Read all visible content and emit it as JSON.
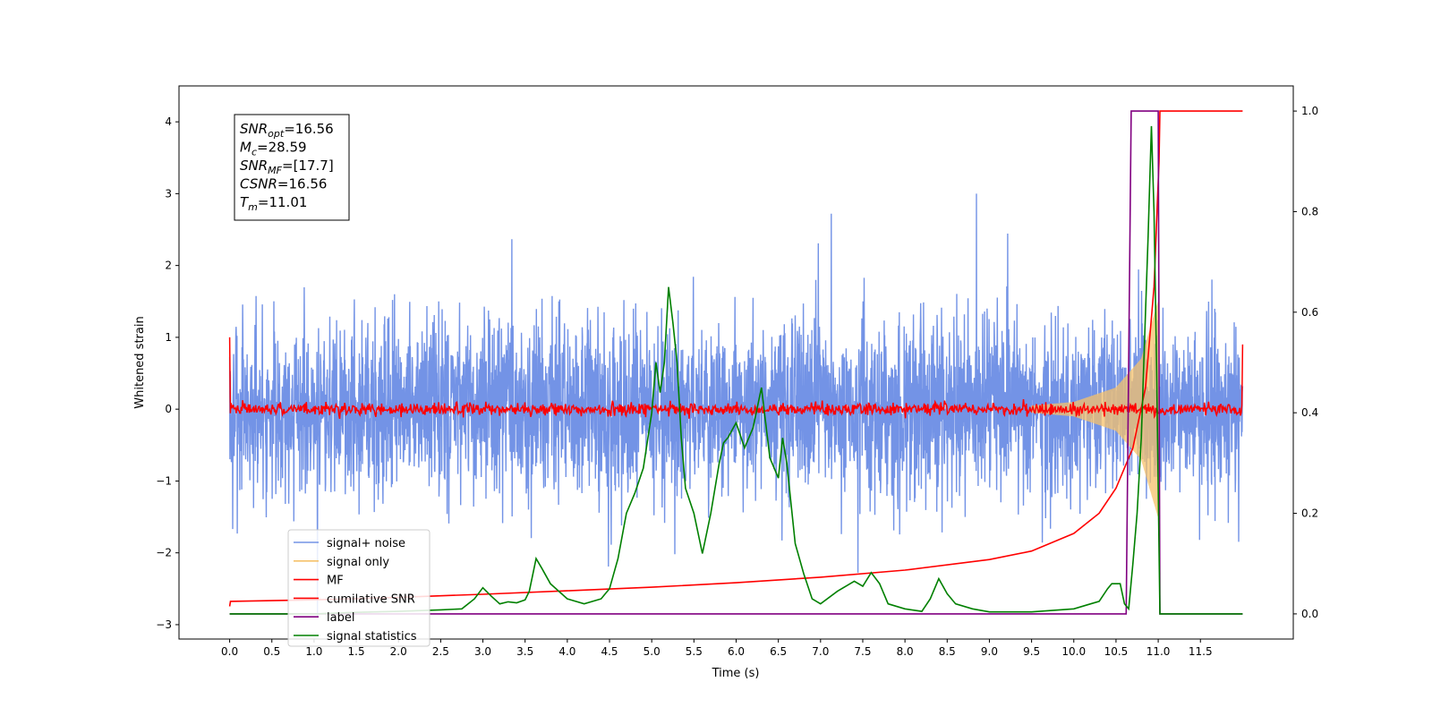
{
  "chart_data": {
    "type": "line",
    "xlabel": "Time (s)",
    "ylabel_left": "Whitened strain",
    "ylabel_right": "",
    "xlim": [
      -0.6,
      12.6
    ],
    "ylim_left": [
      -3.2,
      4.5
    ],
    "ylim_right": [
      -0.05,
      1.05
    ],
    "x_ticks": [
      "0.0",
      "0.5",
      "1.0",
      "1.5",
      "2.0",
      "2.5",
      "3.0",
      "3.5",
      "4.0",
      "4.5",
      "5.0",
      "5.5",
      "6.0",
      "6.5",
      "7.0",
      "7.5",
      "8.0",
      "8.5",
      "9.0",
      "9.5",
      "10.0",
      "10.5",
      "11.0",
      "11.5"
    ],
    "y_ticks_left": [
      "−3",
      "−2",
      "−1",
      "0",
      "1",
      "2",
      "3",
      "4"
    ],
    "y_ticks_right": [
      "0.0",
      "0.2",
      "0.4",
      "0.6",
      "0.8",
      "1.0"
    ],
    "grid": false,
    "legend_position": "lower-left",
    "info_box": {
      "lines": [
        {
          "sym": "SNR",
          "sub": "opt",
          "val": "=16.56"
        },
        {
          "sym": "M",
          "sub": "c",
          "val": "=28.59"
        },
        {
          "sym": "SNR",
          "sub": "MF",
          "val": "=[17.7]"
        },
        {
          "sym": "CSNR",
          "sub": "",
          "val": "=16.56"
        },
        {
          "sym": "T",
          "sub": "m",
          "val": "=11.01"
        }
      ]
    },
    "series": [
      {
        "name": "signal+ noise",
        "color": "#7393e6",
        "axis": "left",
        "kind": "noise",
        "x_range": [
          0.0,
          12.0
        ],
        "noise_peak": [
          -2.9,
          3.0
        ]
      },
      {
        "name": "signal only",
        "color": "#f5c26b",
        "axis": "left",
        "kind": "chirp",
        "x": [
          9.5,
          10.0,
          10.5,
          10.8,
          11.0
        ],
        "amplitude": [
          0.05,
          0.1,
          0.3,
          0.7,
          1.5
        ]
      },
      {
        "name": "MF",
        "color": "#ff0000",
        "axis": "left",
        "kind": "mf",
        "x_range": [
          0.0,
          12.0
        ],
        "baseline": 0.0,
        "edges": [
          1.0,
          0.9
        ]
      },
      {
        "name": "cumilative SNR",
        "color": "#ff0000",
        "axis": "right",
        "x": [
          0.0,
          0.01,
          1.0,
          2.0,
          3.0,
          4.0,
          5.0,
          6.0,
          7.0,
          8.0,
          9.0,
          9.5,
          10.0,
          10.3,
          10.5,
          10.7,
          10.85,
          10.95,
          11.01,
          11.02,
          12.0
        ],
        "y": [
          0.015,
          0.025,
          0.028,
          0.033,
          0.039,
          0.046,
          0.053,
          0.062,
          0.073,
          0.087,
          0.108,
          0.125,
          0.16,
          0.2,
          0.25,
          0.33,
          0.45,
          0.65,
          0.9,
          1.0,
          1.0
        ]
      },
      {
        "name": "label",
        "color": "#800080",
        "axis": "right",
        "x": [
          0.0,
          10.62,
          10.68,
          11.0,
          11.02,
          12.0
        ],
        "y": [
          0.0,
          0.0,
          1.0,
          1.0,
          0.0,
          0.0
        ]
      },
      {
        "name": "signal statistics",
        "color": "#008000",
        "axis": "right",
        "x": [
          0.0,
          0.5,
          1.0,
          1.5,
          2.0,
          2.5,
          2.75,
          2.9,
          3.0,
          3.1,
          3.2,
          3.3,
          3.4,
          3.5,
          3.55,
          3.63,
          3.7,
          3.8,
          3.9,
          4.0,
          4.2,
          4.4,
          4.5,
          4.6,
          4.7,
          4.8,
          4.9,
          5.0,
          5.05,
          5.1,
          5.15,
          5.2,
          5.25,
          5.3,
          5.35,
          5.4,
          5.5,
          5.6,
          5.7,
          5.8,
          5.85,
          5.9,
          6.0,
          6.1,
          6.2,
          6.3,
          6.35,
          6.4,
          6.5,
          6.55,
          6.6,
          6.7,
          6.8,
          6.9,
          7.0,
          7.2,
          7.4,
          7.5,
          7.6,
          7.7,
          7.8,
          8.0,
          8.2,
          8.3,
          8.4,
          8.5,
          8.6,
          8.8,
          9.0,
          9.5,
          10.0,
          10.2,
          10.3,
          10.4,
          10.45,
          10.55,
          10.6,
          10.65,
          10.7,
          10.75,
          10.8,
          10.85,
          10.88,
          10.92,
          10.95,
          10.98,
          11.02,
          11.06,
          12.0
        ],
        "y": [
          0.0,
          0.0,
          0.0,
          0.003,
          0.005,
          0.008,
          0.01,
          0.03,
          0.052,
          0.035,
          0.02,
          0.024,
          0.022,
          0.028,
          0.045,
          0.11,
          0.09,
          0.06,
          0.045,
          0.03,
          0.02,
          0.03,
          0.05,
          0.11,
          0.2,
          0.24,
          0.29,
          0.4,
          0.5,
          0.44,
          0.5,
          0.65,
          0.58,
          0.5,
          0.35,
          0.25,
          0.2,
          0.12,
          0.2,
          0.3,
          0.34,
          0.35,
          0.38,
          0.33,
          0.37,
          0.45,
          0.38,
          0.31,
          0.27,
          0.35,
          0.3,
          0.14,
          0.08,
          0.03,
          0.02,
          0.045,
          0.065,
          0.055,
          0.082,
          0.06,
          0.02,
          0.01,
          0.005,
          0.03,
          0.07,
          0.04,
          0.02,
          0.01,
          0.004,
          0.004,
          0.01,
          0.02,
          0.025,
          0.05,
          0.06,
          0.06,
          0.02,
          0.01,
          0.1,
          0.2,
          0.35,
          0.6,
          0.75,
          0.97,
          0.8,
          0.5,
          0.0,
          0.0,
          0.0
        ]
      }
    ]
  }
}
